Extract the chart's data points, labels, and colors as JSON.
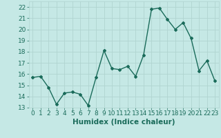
{
  "x": [
    0,
    1,
    2,
    3,
    4,
    5,
    6,
    7,
    8,
    9,
    10,
    11,
    12,
    13,
    14,
    15,
    16,
    17,
    18,
    19,
    20,
    21,
    22,
    23
  ],
  "y": [
    15.7,
    15.8,
    14.8,
    13.3,
    14.3,
    14.4,
    14.2,
    13.2,
    15.7,
    18.1,
    16.5,
    16.4,
    16.7,
    15.8,
    17.7,
    21.8,
    21.9,
    20.9,
    20.0,
    20.6,
    19.2,
    16.3,
    17.2,
    15.4
  ],
  "line_color": "#1a6b5a",
  "marker": "D",
  "marker_size": 2,
  "bg_color": "#c5e8e5",
  "grid_color": "#b0d4d0",
  "xlabel": "Humidex (Indice chaleur)",
  "ylim": [
    13,
    22.5
  ],
  "xlim": [
    -0.5,
    23.5
  ],
  "yticks": [
    13,
    14,
    15,
    16,
    17,
    18,
    19,
    20,
    21,
    22
  ],
  "xticks": [
    0,
    1,
    2,
    3,
    4,
    5,
    6,
    7,
    8,
    9,
    10,
    11,
    12,
    13,
    14,
    15,
    16,
    17,
    18,
    19,
    20,
    21,
    22,
    23
  ],
  "title_color": "#1a6b5a",
  "xlabel_fontsize": 7.5,
  "tick_fontsize": 6.5,
  "line_width": 1.0
}
